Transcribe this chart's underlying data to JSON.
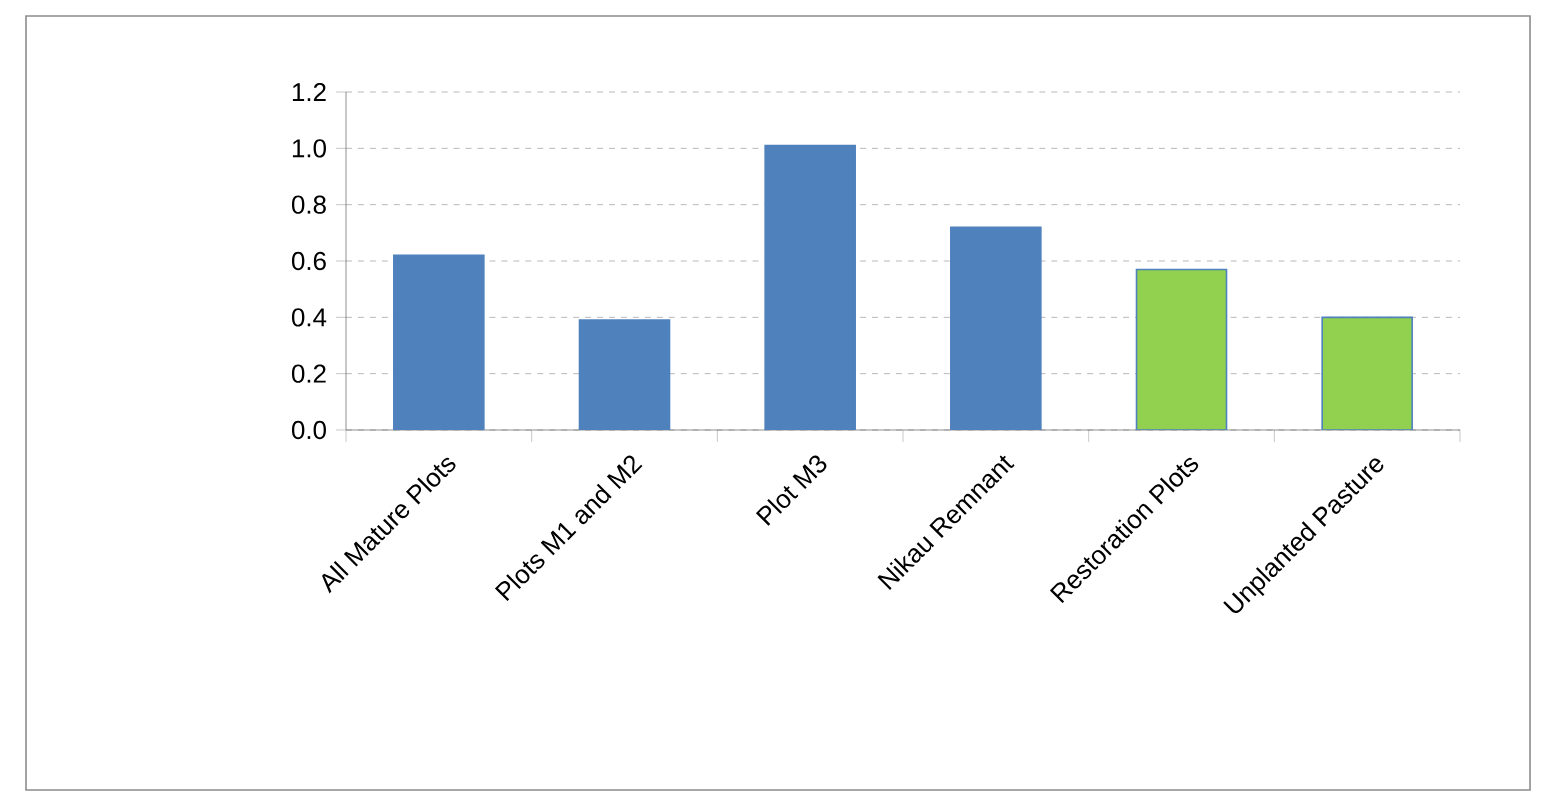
{
  "chart_data": {
    "type": "bar",
    "categories": [
      "All Mature Plots",
      "Plots M1 and M2",
      "Plot M3",
      "Nikau Remnant",
      "Restoration Plots",
      "Unplanted Pasture"
    ],
    "values": [
      0.62,
      0.39,
      1.01,
      0.72,
      0.57,
      0.4
    ],
    "colors": [
      "#4f81bd",
      "#4f81bd",
      "#4f81bd",
      "#4f81bd",
      "#92d050",
      "#92d050"
    ],
    "ylim": [
      0,
      1.2
    ],
    "yticks": [
      {
        "value": 0,
        "label": "0.0"
      },
      {
        "value": 0.2,
        "label": "0.2"
      },
      {
        "value": 0.4,
        "label": "0.4"
      },
      {
        "value": 0.6,
        "label": "0.6"
      },
      {
        "value": 0.8,
        "label": "0.8"
      },
      {
        "value": 1.0,
        "label": "1.0"
      },
      {
        "value": 1.2,
        "label": "1.2"
      }
    ],
    "grid": "y"
  }
}
